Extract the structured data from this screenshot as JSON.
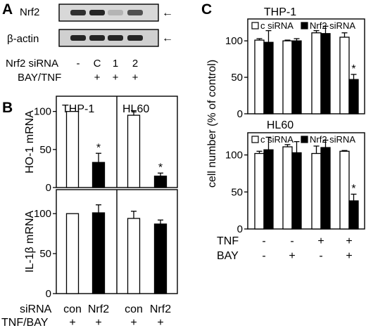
{
  "panels": {
    "A": {
      "letter": "A",
      "blot_labels": [
        "Nrf2",
        "β-actin"
      ],
      "row_labels": [
        "Nrf2 siRNA",
        "BAY/TNF"
      ],
      "lanes": [
        {
          "sirna": "-",
          "treat": ""
        },
        {
          "sirna": "C",
          "treat": "+"
        },
        {
          "sirna": "1",
          "treat": "+"
        },
        {
          "sirna": "2",
          "treat": "+"
        }
      ],
      "nrf2_band_intensity": [
        0.85,
        0.9,
        0.25,
        0.7
      ],
      "actin_band_intensity": [
        0.9,
        0.9,
        0.9,
        0.9
      ],
      "arrow_symbol": "←"
    },
    "B": {
      "letter": "B",
      "x_labels": {
        "row_title": "siRNA",
        "treat_title": "TNF/BAY",
        "sirna": [
          "con",
          "Nrf2",
          "con",
          "Nrf2"
        ],
        "treat": [
          "+",
          "+",
          "+",
          "+"
        ]
      }
    },
    "C": {
      "letter": "C",
      "ylabel": "cell number (% of control)",
      "x_rows": [
        {
          "title": "TNF",
          "values": [
            "-",
            "-",
            "+",
            "+"
          ]
        },
        {
          "title": "BAY",
          "values": [
            "-",
            "+",
            "-",
            "+"
          ]
        }
      ]
    }
  },
  "chart_data": [
    {
      "type": "bar",
      "panel": "B-top",
      "ylabel": "HO-1 mRNA",
      "ylim": [
        0,
        120
      ],
      "yticks": [
        0,
        50,
        100
      ],
      "groups": [
        {
          "title": "THP-1",
          "categories": [
            "con",
            "Nrf2"
          ],
          "values": [
            100,
            33
          ],
          "errors": [
            0,
            12
          ],
          "colors": [
            "#ffffff",
            "#000000"
          ],
          "annotations": [
            "",
            "*"
          ]
        },
        {
          "title": "HL60",
          "categories": [
            "con",
            "Nrf2"
          ],
          "values": [
            95,
            15
          ],
          "errors": [
            6,
            4
          ],
          "colors": [
            "#ffffff",
            "#000000"
          ],
          "annotations": [
            "",
            "*"
          ]
        }
      ]
    },
    {
      "type": "bar",
      "panel": "B-bottom",
      "ylabel": "IL-1β mRNA",
      "ylim": [
        0,
        130
      ],
      "yticks": [
        0,
        50,
        100
      ],
      "groups": [
        {
          "title": "",
          "categories": [
            "con",
            "Nrf2"
          ],
          "values": [
            100,
            101
          ],
          "errors": [
            0,
            10
          ],
          "colors": [
            "#ffffff",
            "#000000"
          ],
          "annotations": [
            "",
            ""
          ]
        },
        {
          "title": "",
          "categories": [
            "con",
            "Nrf2"
          ],
          "values": [
            94,
            87
          ],
          "errors": [
            9,
            5
          ],
          "colors": [
            "#ffffff",
            "#000000"
          ],
          "annotations": [
            "",
            ""
          ]
        }
      ]
    },
    {
      "type": "bar",
      "panel": "C-top",
      "title": "THP-1",
      "ylim": [
        0,
        130
      ],
      "yticks": [
        0,
        50,
        100
      ],
      "legend": {
        "placement": "top",
        "entries": [
          {
            "label": "c siRNA",
            "color": "#ffffff"
          },
          {
            "label": "Nrf2 siRNA",
            "color": "#000000"
          }
        ]
      },
      "categories": [
        "TNF-/BAY-",
        "TNF-/BAY+",
        "TNF+/BAY-",
        "TNF+/BAY+"
      ],
      "series": [
        {
          "values": [
            101,
            100,
            111,
            105
          ],
          "errors": [
            2,
            1,
            3,
            6
          ],
          "color": "#ffffff"
        },
        {
          "values": [
            98,
            100,
            110,
            47
          ],
          "errors": [
            16,
            3,
            10,
            7
          ],
          "color": "#000000",
          "annotations": [
            "",
            "",
            "",
            "*"
          ]
        }
      ]
    },
    {
      "type": "bar",
      "panel": "C-bottom",
      "title": "HL60",
      "ylim": [
        0,
        130
      ],
      "yticks": [
        0,
        50,
        100
      ],
      "legend": {
        "placement": "top",
        "entries": [
          {
            "label": "c siRNA",
            "color": "#ffffff"
          },
          {
            "label": "Nrf2 siRNA",
            "color": "#000000"
          }
        ]
      },
      "categories": [
        "TNF-/BAY-",
        "TNF-/BAY+",
        "TNF+/BAY-",
        "TNF+/BAY+"
      ],
      "series": [
        {
          "values": [
            102,
            111,
            102,
            105
          ],
          "errors": [
            3,
            3,
            10,
            1
          ],
          "color": "#ffffff"
        },
        {
          "values": [
            107,
            103,
            110,
            38
          ],
          "errors": [
            17,
            15,
            10,
            9
          ],
          "color": "#000000",
          "annotations": [
            "",
            "",
            "",
            "*"
          ]
        }
      ]
    }
  ]
}
